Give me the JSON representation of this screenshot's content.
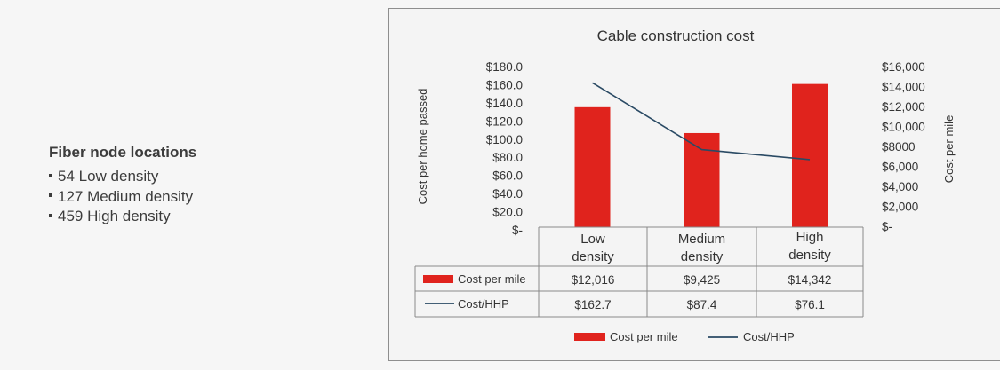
{
  "side_panel": {
    "title": "Fiber node locations",
    "items": [
      "54 Low density",
      "127 Medium density",
      "459 High density"
    ]
  },
  "chart_data": {
    "type": "bar",
    "title": "Cable construction cost",
    "categories": [
      [
        "Low",
        "density"
      ],
      [
        "Medium",
        "density"
      ],
      [
        "High",
        "density"
      ]
    ],
    "ylabel_left": "Cost per home passed",
    "ylabel_right": "Cost per mile",
    "yticks_left": [
      "$180.0",
      "$160.0",
      "$140.0",
      "$120.0",
      "$100.0",
      "$80.0",
      "$60.0",
      "$40.0",
      "$20.0",
      "$-"
    ],
    "yticks_right": [
      "$16,000",
      "$14,000",
      "$12,000",
      "$10,000",
      "$8000",
      "$6,000",
      "$4,000",
      "$2,000",
      "$-"
    ],
    "ylim_left": [
      0,
      180
    ],
    "ylim_right": [
      0,
      16000
    ],
    "series": [
      {
        "name": "Cost per mile",
        "kind": "bar",
        "axis": "right",
        "color": "#e0231d",
        "values": [
          12016,
          9425,
          14342
        ],
        "labels": [
          "$12,016",
          "$9,425",
          "$14,342"
        ]
      },
      {
        "name": "Cost/HHP",
        "kind": "line",
        "axis": "left",
        "color": "#2a4a64",
        "values": [
          162.7,
          87.4,
          76.1
        ],
        "labels": [
          "$162.7",
          "$87.4",
          "$76.1"
        ]
      }
    ],
    "legend_position": "bottom"
  }
}
